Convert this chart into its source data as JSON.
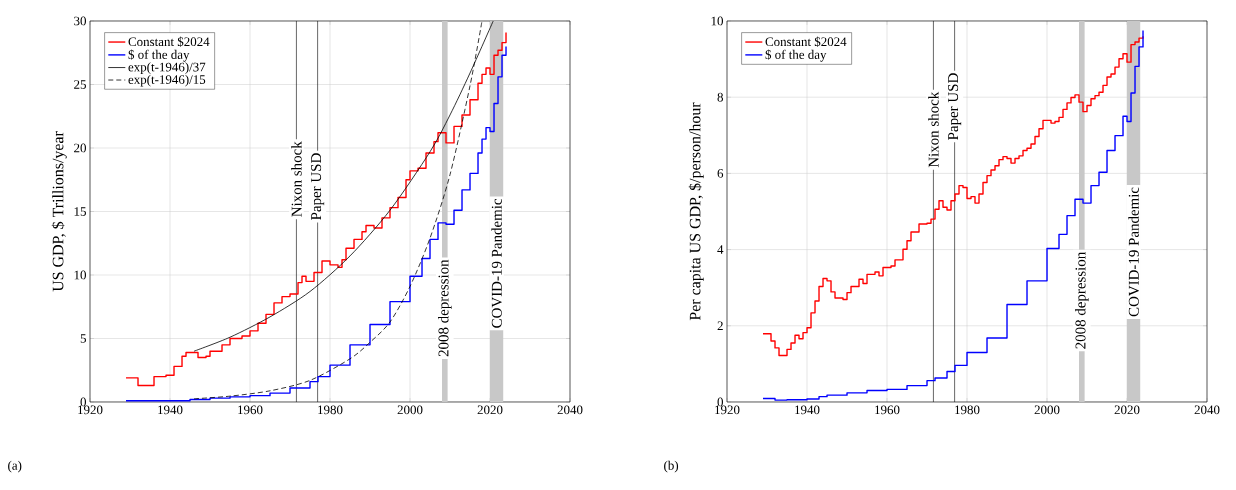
{
  "chart_data": [
    {
      "type": "step",
      "ylabel": "US GDP, $ Trillions/year",
      "annotations": [
        "(a)"
      ],
      "xlim": [
        1920,
        2040
      ],
      "xticks": [
        1920,
        1940,
        1960,
        1980,
        2000,
        2020,
        2040
      ],
      "ylim": [
        0,
        30
      ],
      "yticks": [
        0,
        5,
        10,
        15,
        20,
        25,
        30
      ],
      "grid": true,
      "legend": "top left",
      "series": [
        {
          "name": "Constant $2024",
          "color": "#ff0000",
          "x": [
            1929,
            1932,
            1936,
            1939,
            1941,
            1943,
            1944,
            1946,
            1947,
            1949,
            1950,
            1953,
            1955,
            1958,
            1960,
            1962,
            1964,
            1966,
            1968,
            1970,
            1972,
            1973,
            1974,
            1976,
            1978,
            1980,
            1982,
            1983,
            1984,
            1986,
            1988,
            1989,
            1991,
            1993,
            1995,
            1997,
            1999,
            2000,
            2002,
            2004,
            2006,
            2007,
            2009,
            2011,
            2013,
            2015,
            2017,
            2018,
            2019,
            2020,
            2021,
            2022,
            2023,
            2024
          ],
          "values": [
            1.9,
            1.3,
            2.0,
            2.1,
            2.8,
            3.6,
            3.9,
            3.9,
            3.5,
            3.6,
            4.0,
            4.5,
            5.0,
            5.2,
            5.6,
            6.2,
            6.9,
            7.8,
            8.3,
            8.5,
            9.4,
            9.9,
            9.5,
            10.2,
            11.1,
            10.8,
            10.6,
            11.2,
            12.1,
            12.8,
            13.4,
            13.9,
            13.7,
            14.5,
            15.3,
            16.1,
            17.5,
            18.2,
            18.4,
            19.6,
            20.5,
            21.2,
            20.4,
            21.7,
            22.6,
            23.8,
            25.1,
            25.8,
            26.3,
            25.8,
            27.3,
            27.7,
            28.3,
            29.1
          ]
        },
        {
          "name": "$ of the day",
          "color": "#0000ff",
          "x": [
            1929,
            1940,
            1945,
            1950,
            1955,
            1960,
            1965,
            1970,
            1975,
            1977,
            1980,
            1985,
            1990,
            1995,
            2000,
            2003,
            2005,
            2007,
            2009,
            2011,
            2013,
            2015,
            2017,
            2018,
            2019,
            2020,
            2021,
            2022,
            2023,
            2024
          ],
          "values": [
            0.1,
            0.1,
            0.2,
            0.3,
            0.4,
            0.5,
            0.7,
            1.1,
            1.6,
            2.0,
            2.9,
            4.5,
            6.1,
            7.9,
            9.9,
            11.3,
            12.8,
            14.1,
            14.0,
            15.1,
            16.7,
            18.0,
            19.6,
            20.7,
            21.6,
            21.3,
            23.5,
            25.6,
            27.3,
            28.0
          ]
        },
        {
          "name": "exp(t-1946)/37",
          "type": "line",
          "color": "#000000",
          "x": [
            1946,
            1955,
            1965,
            1975,
            1985,
            1995,
            2005,
            2010,
            2015,
            2020.8
          ],
          "values": [
            4.0,
            5.1,
            6.7,
            8.7,
            11.5,
            15.1,
            19.7,
            22.6,
            25.9,
            30
          ]
        },
        {
          "name": "exp(t-1946)/15",
          "type": "line",
          "line_style": "dashed",
          "color": "#000000",
          "x": [
            1946,
            1955,
            1965,
            1975,
            1985,
            1990,
            1995,
            2000,
            2005,
            2010,
            2015,
            2018
          ],
          "values": [
            0.25,
            0.46,
            0.88,
            1.7,
            3.4,
            4.7,
            6.3,
            9.1,
            12.9,
            17.9,
            24.9,
            30
          ]
        }
      ],
      "ref_lines": [
        {
          "axis": "x",
          "value": 1971.6,
          "label": "Nixon shock",
          "color": "#000000"
        },
        {
          "axis": "x",
          "value": 1976.9,
          "label": "Paper USD",
          "color": "#000000"
        }
      ],
      "bands": [
        {
          "axis": "x",
          "from": 2008,
          "to": 2009.4,
          "label": "2008 depression",
          "color": "#c8c8c8"
        },
        {
          "axis": "x",
          "from": 2020,
          "to": 2023.3,
          "label": "COVID-19 Pandemic",
          "color": "#c8c8c8"
        }
      ]
    },
    {
      "type": "step",
      "ylabel": "Per capita US GDP, $/person/hour",
      "annotations": [
        "(b)"
      ],
      "xlim": [
        1920,
        2040
      ],
      "xticks": [
        1920,
        1940,
        1960,
        1980,
        2000,
        2020,
        2040
      ],
      "ylim": [
        0,
        10
      ],
      "yticks": [
        0,
        2,
        4,
        6,
        8,
        10
      ],
      "grid": true,
      "legend": "top left",
      "series": [
        {
          "name": "Constant $2024",
          "color": "#ff0000",
          "x": [
            1929,
            1931,
            1932,
            1933,
            1935,
            1936,
            1937,
            1938,
            1939,
            1940,
            1941,
            1942,
            1943,
            1944,
            1945,
            1946,
            1947,
            1949,
            1950,
            1951,
            1953,
            1954,
            1955,
            1957,
            1958,
            1959,
            1961,
            1962,
            1964,
            1965,
            1966,
            1968,
            1970,
            1971,
            1972,
            1973,
            1974,
            1975,
            1976,
            1977,
            1978,
            1979,
            1980,
            1981,
            1982,
            1983,
            1984,
            1985,
            1986,
            1987,
            1988,
            1989,
            1990,
            1991,
            1992,
            1993,
            1994,
            1995,
            1996,
            1997,
            1998,
            1999,
            2001,
            2002,
            2003,
            2004,
            2005,
            2006,
            2007,
            2008,
            2009,
            2010,
            2011,
            2012,
            2013,
            2014,
            2015,
            2016,
            2017,
            2018,
            2019,
            2020,
            2021,
            2022,
            2023,
            2024
          ],
          "values": [
            1.79,
            1.6,
            1.42,
            1.22,
            1.38,
            1.55,
            1.75,
            1.66,
            1.82,
            1.95,
            2.34,
            2.65,
            3.03,
            3.24,
            3.18,
            2.89,
            2.73,
            2.69,
            2.87,
            3.03,
            3.22,
            3.11,
            3.35,
            3.41,
            3.31,
            3.53,
            3.57,
            3.73,
            4.01,
            4.23,
            4.46,
            4.67,
            4.69,
            4.8,
            5.06,
            5.28,
            5.11,
            5.04,
            5.28,
            5.46,
            5.68,
            5.63,
            5.34,
            5.39,
            5.22,
            5.46,
            5.76,
            5.94,
            6.09,
            6.2,
            6.36,
            6.44,
            6.39,
            6.27,
            6.39,
            6.46,
            6.6,
            6.66,
            6.77,
            6.97,
            7.17,
            7.39,
            7.32,
            7.36,
            7.47,
            7.68,
            7.85,
            7.99,
            8.06,
            7.87,
            7.62,
            7.78,
            7.96,
            8.04,
            8.13,
            8.31,
            8.53,
            8.61,
            8.79,
            9.01,
            9.14,
            8.92,
            9.38,
            9.45,
            9.55,
            9.6
          ]
        },
        {
          "name": "$ of the day",
          "color": "#0000ff",
          "x": [
            1929,
            1932,
            1935,
            1940,
            1943,
            1945,
            1950,
            1955,
            1960,
            1965,
            1970,
            1972,
            1975,
            1977,
            1980,
            1985,
            1990,
            1995,
            2000,
            2003,
            2005,
            2007,
            2009,
            2011,
            2013,
            2015,
            2017,
            2019,
            2020,
            2021,
            2022,
            2023,
            2024
          ],
          "values": [
            0.09,
            0.05,
            0.06,
            0.08,
            0.14,
            0.18,
            0.24,
            0.3,
            0.33,
            0.43,
            0.56,
            0.63,
            0.8,
            0.96,
            1.3,
            1.68,
            2.56,
            3.18,
            4.03,
            4.4,
            4.89,
            5.32,
            5.22,
            5.68,
            6.03,
            6.6,
            6.99,
            7.5,
            7.36,
            8.11,
            8.81,
            9.32,
            9.75
          ]
        }
      ],
      "ref_lines": [
        {
          "axis": "x",
          "value": 1971.6,
          "label": "Nixon shock",
          "color": "#000000"
        },
        {
          "axis": "x",
          "value": 1976.9,
          "label": "Paper USD",
          "color": "#000000"
        }
      ],
      "bands": [
        {
          "axis": "x",
          "from": 2008,
          "to": 2009.4,
          "label": "2008 depression",
          "color": "#c8c8c8"
        },
        {
          "axis": "x",
          "from": 2020,
          "to": 2023.3,
          "label": "COVID-19 Pandemic",
          "color": "#c8c8c8"
        }
      ]
    }
  ]
}
